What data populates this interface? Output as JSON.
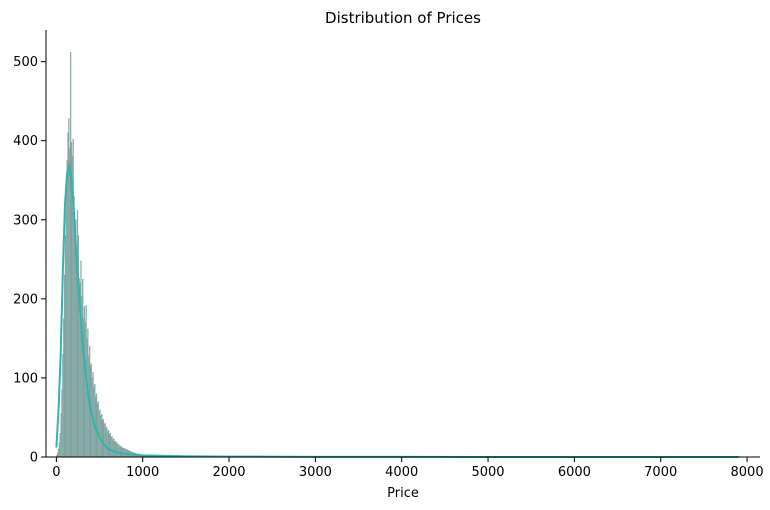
{
  "chart_data": {
    "type": "histogram",
    "title": "Distribution of Prices",
    "xlabel": "Price",
    "ylabel": "",
    "xlim": [
      -120,
      8150
    ],
    "ylim": [
      0,
      540
    ],
    "xticks": [
      0,
      1000,
      2000,
      3000,
      4000,
      5000,
      6000,
      7000,
      8000
    ],
    "yticks": [
      0,
      100,
      200,
      300,
      400,
      500
    ],
    "grid": false,
    "colors": {
      "bars": "#5bbab2",
      "bar_edge": "#8a8a8a",
      "kde": "#2fb5ad"
    },
    "bin_width": 10,
    "bins": {
      "x_start": 0,
      "counts": [
        2,
        5,
        10,
        18,
        30,
        55,
        85,
        130,
        175,
        230,
        280,
        330,
        375,
        410,
        428,
        390,
        512,
        398,
        380,
        402,
        330,
        285,
        300,
        240,
        312,
        280,
        226,
        220,
        248,
        203,
        225,
        175,
        190,
        170,
        192,
        150,
        162,
        128,
        140,
        115,
        118,
        100,
        107,
        88,
        92,
        76,
        80,
        67,
        70,
        58,
        60,
        52,
        54,
        46,
        48,
        41,
        43,
        36,
        38,
        32,
        34,
        28,
        30,
        25,
        26,
        22,
        23,
        19,
        20,
        17,
        18,
        15,
        16,
        13,
        14,
        12,
        12,
        11,
        11,
        10,
        10,
        9,
        9,
        8,
        8,
        7,
        7,
        6,
        6,
        5,
        5,
        5,
        4,
        4,
        4,
        4,
        3,
        3,
        3,
        3,
        3,
        2,
        2,
        2,
        2,
        2,
        2,
        2,
        2,
        1,
        1,
        1,
        1,
        1,
        1,
        1,
        1,
        1,
        1,
        1
      ],
      "sparse_tail": [
        [
          1250,
          1
        ],
        [
          1400,
          1
        ],
        [
          1600,
          1
        ],
        [
          1900,
          1
        ],
        [
          2300,
          1
        ],
        [
          3000,
          1
        ],
        [
          4100,
          1
        ],
        [
          5300,
          1
        ],
        [
          7900,
          1
        ]
      ]
    },
    "kde": {
      "x": [
        0,
        25,
        50,
        75,
        100,
        125,
        150,
        175,
        200,
        225,
        250,
        275,
        300,
        325,
        350,
        375,
        400,
        450,
        500,
        550,
        600,
        700,
        800,
        900,
        1000,
        1200,
        1500,
        2000,
        3000,
        4000,
        5000,
        6000,
        7000,
        7900
      ],
      "y": [
        12,
        60,
        130,
        235,
        320,
        360,
        367,
        350,
        315,
        270,
        225,
        185,
        150,
        120,
        95,
        75,
        58,
        38,
        25,
        16,
        10,
        6,
        4,
        3,
        2,
        1.5,
        1,
        0.5,
        0.2,
        0.1,
        0.05,
        0.02,
        0.01,
        0.005
      ]
    }
  }
}
